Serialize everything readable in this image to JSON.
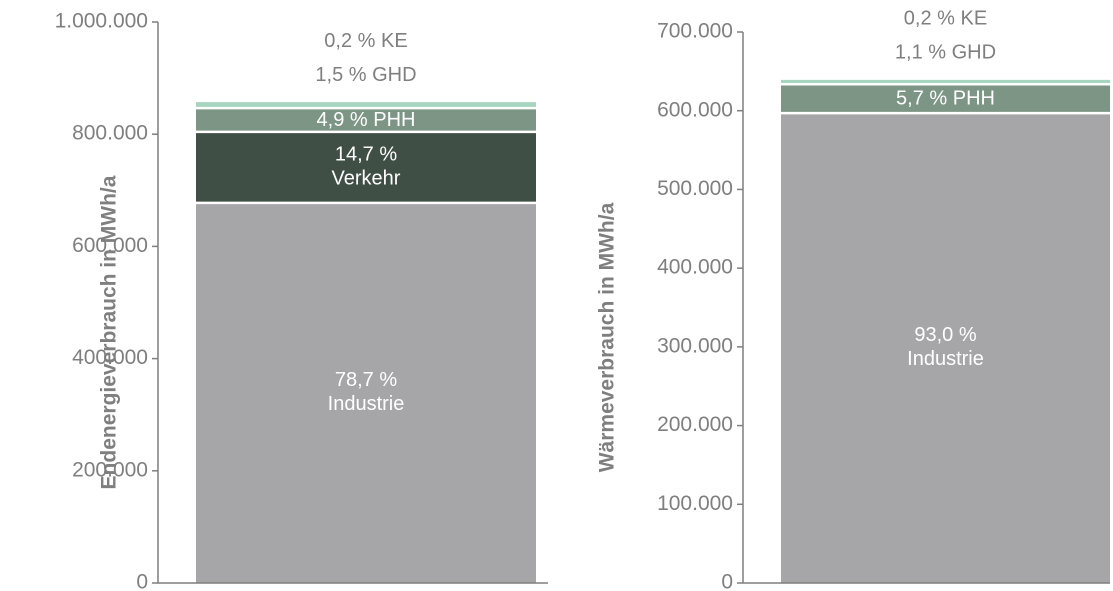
{
  "chart_data": [
    {
      "type": "bar",
      "stacked": true,
      "ylabel": "Endenergieverbrauch in MWh/a",
      "ylim": [
        0,
        1000000
      ],
      "yticks": [
        0,
        {
          "value": 200000,
          "label": "200.000"
        },
        {
          "value": 400000,
          "label": "400.000"
        },
        {
          "value": 600000,
          "label": "600.000"
        },
        {
          "value": 800000,
          "label": "800.000"
        },
        {
          "value": 1000000,
          "label": "1.000.000"
        }
      ],
      "series": [
        {
          "name": "Industrie",
          "share_label": "78,7 %",
          "color": "#a6a6a8",
          "values": [
            677600
          ]
        },
        {
          "name": "Verkehr",
          "share_label": "14,7 %",
          "color": "#404f45",
          "values": [
            126600
          ]
        },
        {
          "name": "PHH",
          "share_label": "4,9 %",
          "color": "#7d9585",
          "values": [
            42200
          ]
        },
        {
          "name": "GHD",
          "share_label": "1,5 %",
          "color": "#a8d5c0",
          "values": [
            12900
          ]
        },
        {
          "name": "KE",
          "share_label": "0,2 %",
          "color": "#d9eee4",
          "values": [
            1700
          ]
        }
      ]
    },
    {
      "type": "bar",
      "stacked": true,
      "ylabel": "Wärmeverbrauch in MWh/a",
      "ylim": [
        0,
        700000
      ],
      "yticks": [
        0,
        {
          "value": 100000,
          "label": "100.000"
        },
        {
          "value": 200000,
          "label": "200.000"
        },
        {
          "value": 300000,
          "label": "300.000"
        },
        {
          "value": 400000,
          "label": "400.000"
        },
        {
          "value": 500000,
          "label": "500.000"
        },
        {
          "value": 600000,
          "label": "600.000"
        },
        {
          "value": 700000,
          "label": "700.000"
        }
      ],
      "series": [
        {
          "name": "Industrie",
          "share_label": "93,0 %",
          "color": "#a6a6a8",
          "values": [
            597000
          ]
        },
        {
          "name": "PHH",
          "share_label": "5,7 %",
          "color": "#7d9585",
          "values": [
            36600
          ]
        },
        {
          "name": "GHD",
          "share_label": "1,1 %",
          "color": "#a8d5c0",
          "values": [
            7100
          ]
        },
        {
          "name": "KE",
          "share_label": "0,2 %",
          "color": "#d9eee4",
          "values": [
            1300
          ]
        }
      ]
    }
  ]
}
